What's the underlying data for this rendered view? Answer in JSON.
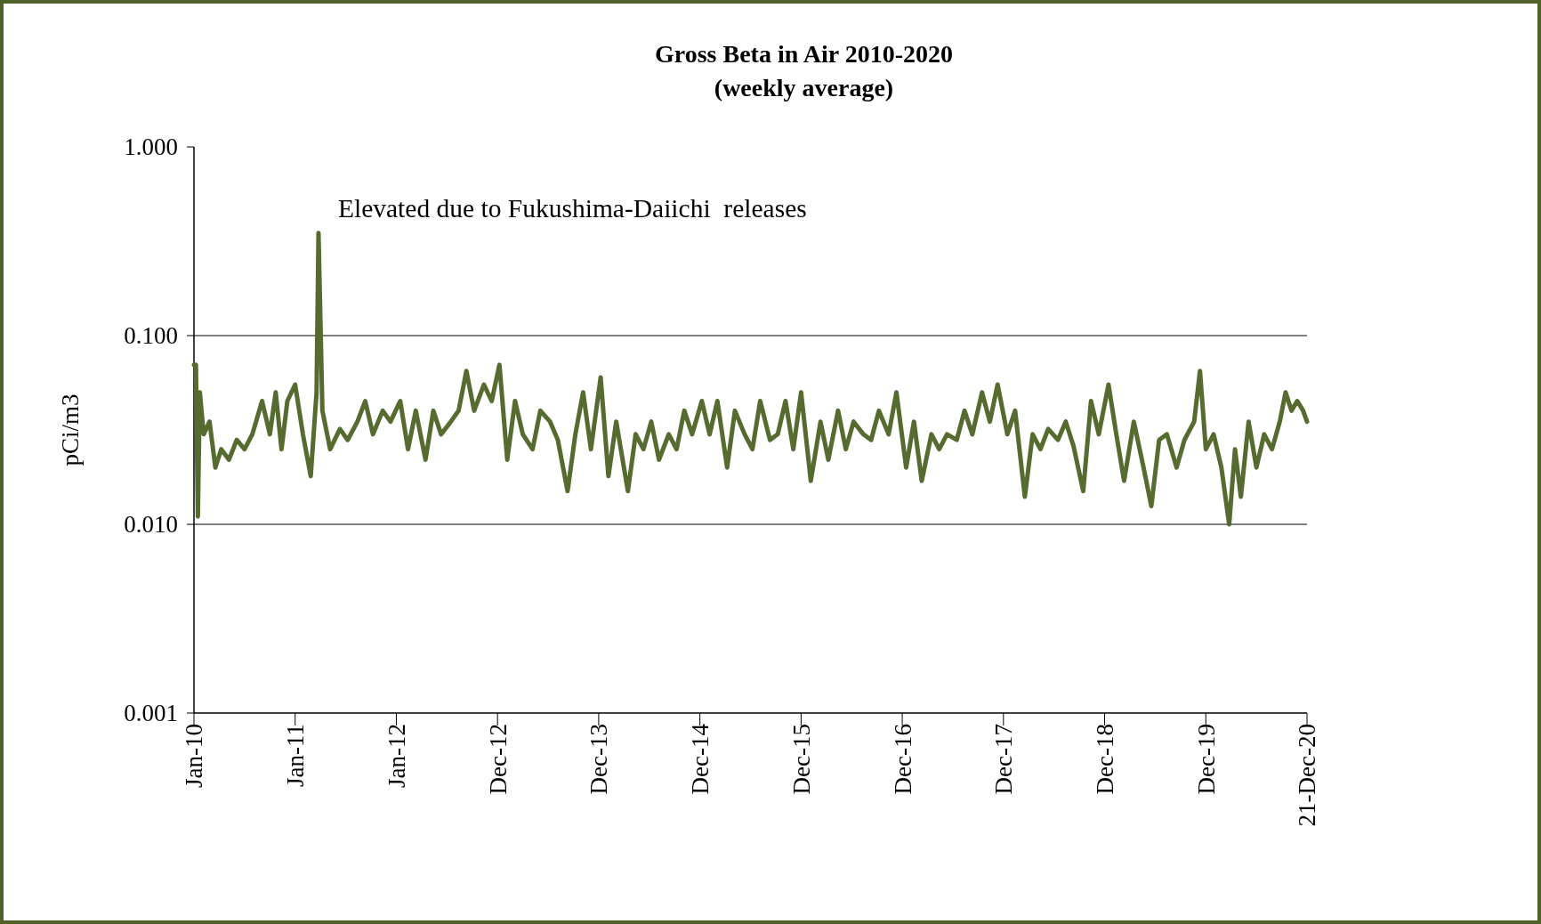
{
  "chart_data": {
    "type": "line",
    "title": "Gross Beta in Air 2010-2020",
    "subtitle": "(weekly average)",
    "ylabel": "pCi/m3",
    "log": "y",
    "grid": "y",
    "marker": "none",
    "line_style": "solid",
    "ylim": [
      0.001,
      1
    ],
    "yticks": [
      {
        "value": 0.001,
        "label": "0.001"
      },
      {
        "value": 0.01,
        "label": "0.010"
      },
      {
        "value": 0.1,
        "label": "0.100"
      },
      {
        "value": 1,
        "label": "1.000"
      }
    ],
    "xlim": [
      "2010-01-04",
      "2020-12-21"
    ],
    "xticks": [
      {
        "value": "2010-01-04",
        "label": "Jan-10"
      },
      {
        "value": "2011-01-03",
        "label": "Jan-11"
      },
      {
        "value": "2012-01-02",
        "label": "Jan-12"
      },
      {
        "value": "2012-12-31",
        "label": "Dec-12"
      },
      {
        "value": "2013-12-30",
        "label": "Dec-13"
      },
      {
        "value": "2014-12-29",
        "label": "Dec-14"
      },
      {
        "value": "2015-12-28",
        "label": "Dec-15"
      },
      {
        "value": "2016-12-26",
        "label": "Dec-16"
      },
      {
        "value": "2017-12-25",
        "label": "Dec-17"
      },
      {
        "value": "2018-12-24",
        "label": "Dec-18"
      },
      {
        "value": "2019-12-23",
        "label": "Dec-19"
      },
      {
        "value": "2020-12-21",
        "label": "21-Dec-20"
      }
    ],
    "annotations": [
      {
        "text": "Elevated due to Fukushima-Daiichi  releases",
        "x": "2011-03-28",
        "y": 0.35
      }
    ],
    "series": [
      {
        "color": "#556b2f",
        "x": [
          "2010-01-04",
          "2010-01-11",
          "2010-01-18",
          "2010-01-25",
          "2010-02-08",
          "2010-03-01",
          "2010-03-22",
          "2010-04-12",
          "2010-05-10",
          "2010-06-07",
          "2010-07-05",
          "2010-08-02",
          "2010-09-06",
          "2010-10-04",
          "2010-10-25",
          "2010-11-15",
          "2010-12-06",
          "2011-01-03",
          "2011-01-31",
          "2011-02-28",
          "2011-03-21",
          "2011-03-28",
          "2011-04-11",
          "2011-05-09",
          "2011-06-13",
          "2011-07-11",
          "2011-08-15",
          "2011-09-12",
          "2011-10-10",
          "2011-11-14",
          "2011-12-12",
          "2012-01-16",
          "2012-02-13",
          "2012-03-12",
          "2012-04-16",
          "2012-05-14",
          "2012-06-11",
          "2012-07-16",
          "2012-08-13",
          "2012-09-10",
          "2012-10-08",
          "2012-11-12",
          "2012-12-10",
          "2013-01-07",
          "2013-02-04",
          "2013-03-04",
          "2013-04-01",
          "2013-05-06",
          "2013-06-03",
          "2013-07-08",
          "2013-08-05",
          "2013-09-09",
          "2013-10-07",
          "2013-11-04",
          "2013-12-02",
          "2014-01-06",
          "2014-02-03",
          "2014-03-03",
          "2014-04-14",
          "2014-05-12",
          "2014-06-09",
          "2014-07-07",
          "2014-08-04",
          "2014-09-08",
          "2014-10-06",
          "2014-11-03",
          "2014-12-01",
          "2015-01-05",
          "2015-02-02",
          "2015-03-02",
          "2015-04-06",
          "2015-05-04",
          "2015-06-08",
          "2015-07-06",
          "2015-08-03",
          "2015-09-07",
          "2015-10-05",
          "2015-11-02",
          "2015-11-30",
          "2015-12-28",
          "2016-02-01",
          "2016-03-07",
          "2016-04-04",
          "2016-05-09",
          "2016-06-06",
          "2016-07-04",
          "2016-08-08",
          "2016-09-05",
          "2016-10-03",
          "2016-11-07",
          "2016-12-05",
          "2017-01-09",
          "2017-02-06",
          "2017-03-06",
          "2017-04-10",
          "2017-05-08",
          "2017-06-05",
          "2017-07-10",
          "2017-08-07",
          "2017-09-04",
          "2017-10-09",
          "2017-11-06",
          "2017-12-04",
          "2018-01-08",
          "2018-02-05",
          "2018-03-12",
          "2018-04-09",
          "2018-05-07",
          "2018-06-04",
          "2018-07-09",
          "2018-08-06",
          "2018-09-03",
          "2018-10-08",
          "2018-11-05",
          "2018-12-03",
          "2019-01-07",
          "2019-02-04",
          "2019-03-04",
          "2019-04-08",
          "2019-05-13",
          "2019-06-10",
          "2019-07-08",
          "2019-08-05",
          "2019-09-09",
          "2019-10-07",
          "2019-11-11",
          "2019-12-02",
          "2019-12-23",
          "2020-01-20",
          "2020-02-17",
          "2020-03-16",
          "2020-04-06",
          "2020-04-27",
          "2020-05-25",
          "2020-06-22",
          "2020-07-20",
          "2020-08-17",
          "2020-09-14",
          "2020-10-05",
          "2020-10-26",
          "2020-11-16",
          "2020-12-07",
          "2020-12-21"
        ],
        "values": [
          0.07,
          0.07,
          0.011,
          0.05,
          0.03,
          0.035,
          0.02,
          0.025,
          0.022,
          0.028,
          0.025,
          0.03,
          0.045,
          0.03,
          0.05,
          0.025,
          0.045,
          0.055,
          0.03,
          0.018,
          0.05,
          0.35,
          0.04,
          0.025,
          0.032,
          0.028,
          0.035,
          0.045,
          0.03,
          0.04,
          0.035,
          0.045,
          0.025,
          0.04,
          0.022,
          0.04,
          0.03,
          0.035,
          0.04,
          0.065,
          0.04,
          0.055,
          0.045,
          0.07,
          0.022,
          0.045,
          0.03,
          0.025,
          0.04,
          0.035,
          0.028,
          0.015,
          0.03,
          0.05,
          0.025,
          0.06,
          0.018,
          0.035,
          0.015,
          0.03,
          0.025,
          0.035,
          0.022,
          0.03,
          0.025,
          0.04,
          0.03,
          0.045,
          0.03,
          0.045,
          0.02,
          0.04,
          0.03,
          0.025,
          0.045,
          0.028,
          0.03,
          0.045,
          0.025,
          0.05,
          0.017,
          0.035,
          0.022,
          0.04,
          0.025,
          0.035,
          0.03,
          0.028,
          0.04,
          0.03,
          0.05,
          0.02,
          0.035,
          0.017,
          0.03,
          0.025,
          0.03,
          0.028,
          0.04,
          0.03,
          0.05,
          0.035,
          0.055,
          0.03,
          0.04,
          0.014,
          0.03,
          0.025,
          0.032,
          0.028,
          0.035,
          0.026,
          0.015,
          0.045,
          0.03,
          0.055,
          0.03,
          0.017,
          0.035,
          0.02,
          0.0125,
          0.028,
          0.03,
          0.02,
          0.028,
          0.035,
          0.065,
          0.025,
          0.03,
          0.02,
          0.01,
          0.025,
          0.014,
          0.035,
          0.02,
          0.03,
          0.025,
          0.035,
          0.05,
          0.04,
          0.045,
          0.04,
          0.035
        ]
      }
    ]
  }
}
